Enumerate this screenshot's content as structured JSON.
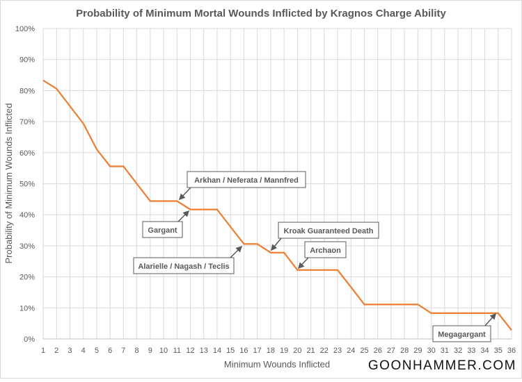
{
  "chart_data": {
    "type": "line",
    "title": "Probability of Minimum Mortal Wounds Inflicted by Kragnos Charge Ability",
    "xlabel": "Minimum Wounds Inflicted",
    "ylabel": "Probability of Minimum Wounds Inflicted",
    "x": [
      1,
      2,
      3,
      4,
      5,
      6,
      7,
      8,
      9,
      10,
      11,
      12,
      13,
      14,
      15,
      16,
      17,
      18,
      19,
      20,
      21,
      22,
      23,
      24,
      25,
      26,
      27,
      28,
      29,
      30,
      31,
      32,
      33,
      34,
      35,
      36
    ],
    "series": [
      {
        "name": "Probability",
        "color": "#ED7D31",
        "values": [
          83.3,
          80.6,
          75.0,
          69.4,
          61.1,
          55.6,
          55.6,
          50.0,
          44.4,
          44.4,
          44.4,
          41.7,
          41.7,
          41.7,
          36.1,
          30.6,
          30.6,
          27.8,
          27.8,
          22.2,
          22.2,
          22.2,
          22.2,
          16.7,
          11.1,
          11.1,
          11.1,
          11.1,
          11.1,
          8.3,
          8.3,
          8.3,
          8.3,
          8.3,
          8.3,
          2.8
        ]
      }
    ],
    "ylim": [
      0,
      100
    ],
    "xlim": [
      1,
      36
    ],
    "yticks": [
      "0%",
      "10%",
      "20%",
      "30%",
      "40%",
      "50%",
      "60%",
      "70%",
      "80%",
      "90%",
      "100%"
    ],
    "xticks": [
      "1",
      "2",
      "3",
      "4",
      "5",
      "6",
      "7",
      "8",
      "9",
      "10",
      "11",
      "12",
      "13",
      "14",
      "15",
      "16",
      "17",
      "18",
      "19",
      "20",
      "21",
      "22",
      "23",
      "24",
      "25",
      "26",
      "27",
      "28",
      "29",
      "30",
      "31",
      "32",
      "33",
      "34",
      "35",
      "36"
    ],
    "grid": true,
    "annotations": [
      {
        "text": "Arkhan / Neferata / Mannfred",
        "x": 11
      },
      {
        "text": "Gargant",
        "x": 12
      },
      {
        "text": "Alarielle / Nagash / Teclis",
        "x": 16
      },
      {
        "text": "Kroak Guaranteed Death",
        "x": 18
      },
      {
        "text": "Archaon",
        "x": 20
      },
      {
        "text": "Megagargant",
        "x": 35
      }
    ]
  },
  "watermark": "GOONHAMMER.COM"
}
